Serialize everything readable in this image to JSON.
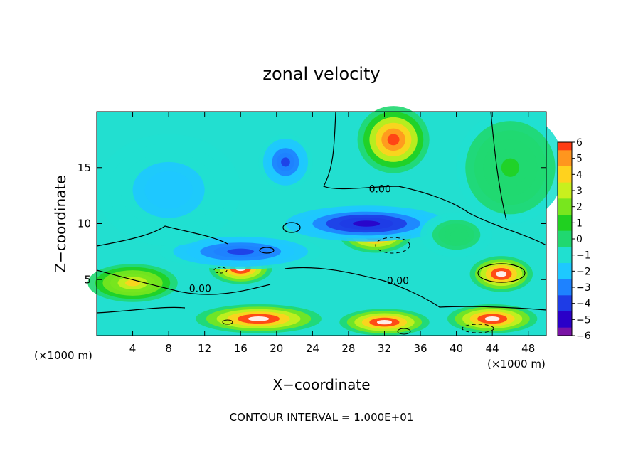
{
  "chart_data": {
    "type": "heatmap",
    "title": "zonal velocity",
    "xlabel": "X−coordinate",
    "ylabel": "Z−coordinate",
    "x_unit_left": "(×1000 m)",
    "x_unit_right": "(×1000 m)",
    "footer": "CONTOUR INTERVAL = 1.000E+01",
    "xlim": [
      0,
      50
    ],
    "ylim": [
      0,
      20
    ],
    "xticks": [
      4,
      8,
      12,
      16,
      20,
      24,
      28,
      32,
      36,
      40,
      44,
      48
    ],
    "xtick_labels": [
      "4",
      "8",
      "12",
      "16",
      "20",
      "24",
      "28",
      "32",
      "36",
      "40",
      "44",
      "48"
    ],
    "yticks": [
      5,
      10,
      15
    ],
    "ytick_labels": [
      "5",
      "10",
      "15"
    ],
    "colorbar": {
      "min": -6,
      "max": 6,
      "tick_values": [
        6,
        5,
        4,
        3,
        2,
        1,
        0,
        -1,
        -2,
        -3,
        -4,
        -5,
        -6
      ],
      "tick_labels": [
        "6",
        "5",
        "4",
        "3",
        "2",
        "1",
        "0",
        "−1",
        "−2",
        "−3",
        "−4",
        "−5",
        "−6"
      ]
    },
    "contour_labels": [
      {
        "text": "0.00",
        "x": 31.5,
        "y": 12.8
      },
      {
        "text": "0.00",
        "x": 11.5,
        "y": 3.9
      },
      {
        "text": "0.00",
        "x": 33.5,
        "y": 4.6
      }
    ],
    "features": [
      {
        "x": 33,
        "y": 17.5,
        "sx": 4,
        "sy": 3,
        "value": 6
      },
      {
        "x": 21,
        "y": 15.5,
        "sx": 3,
        "sy": 2.5,
        "value": -4
      },
      {
        "x": 31,
        "y": 9,
        "sx": 4,
        "sy": 1.6,
        "value": 7
      },
      {
        "x": 30,
        "y": 10,
        "sx": 9,
        "sy": 1.6,
        "value": -5
      },
      {
        "x": 16,
        "y": 6,
        "sx": 3.5,
        "sy": 1.4,
        "value": 7
      },
      {
        "x": 16,
        "y": 7.5,
        "sx": 9,
        "sy": 1.6,
        "value": -4
      },
      {
        "x": 45,
        "y": 5.5,
        "sx": 3.5,
        "sy": 1.6,
        "value": 7
      },
      {
        "x": 4,
        "y": 4.7,
        "sx": 5,
        "sy": 1.7,
        "value": 4
      },
      {
        "x": 18,
        "y": 1.5,
        "sx": 7,
        "sy": 1.3,
        "value": 7
      },
      {
        "x": 32,
        "y": 1.2,
        "sx": 5,
        "sy": 1.2,
        "value": 7
      },
      {
        "x": 44,
        "y": 1.5,
        "sx": 5,
        "sy": 1.3,
        "value": 7
      },
      {
        "x": 8,
        "y": 13,
        "sx": 8,
        "sy": 5,
        "value": -2
      },
      {
        "x": 46,
        "y": 15,
        "sx": 6,
        "sy": 5,
        "value": 0.5
      },
      {
        "x": 40,
        "y": 9,
        "sx": 4,
        "sy": 2,
        "value": 0
      }
    ]
  }
}
